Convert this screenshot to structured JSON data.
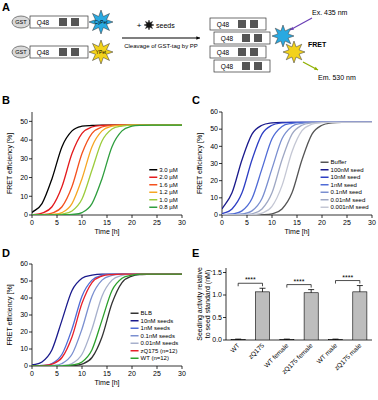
{
  "diagram": {
    "label": "A",
    "constructs": [
      {
        "tag": "GST",
        "polyq": "Q48",
        "fluorophore": "CyPet",
        "color": "#29a9e1"
      },
      {
        "tag": "GST",
        "polyq": "Q48",
        "fluorophore": "YPet",
        "color": "#f2d21b"
      }
    ],
    "plus": "+",
    "seeds": "seeds",
    "cleavage": "Cleavage of GST-tag by PP",
    "excitation": "Ex. 435 nm",
    "fret": "FRET",
    "emission": "Em. 530 nm"
  },
  "chart_data": [
    {
      "type": "line",
      "label": "B",
      "xlabel": "Time [h]",
      "ylabel": "FRET efficiency [%]",
      "x": [
        0,
        2,
        4,
        6,
        8,
        10,
        12,
        14,
        16,
        18,
        20,
        22,
        24,
        26,
        28,
        30
      ],
      "xlim": [
        0,
        30
      ],
      "xticks": [
        0,
        5,
        10,
        15,
        20,
        25,
        30
      ],
      "ylim": [
        0,
        55
      ],
      "yticks": [
        0,
        10,
        20,
        30,
        40,
        50
      ],
      "legend": "lower right",
      "series": [
        {
          "name": "3.0 µM",
          "color": "#000000",
          "values": [
            1.3,
            6.1,
            19.4,
            36.5,
            44.9,
            47.4,
            47.8,
            48,
            48,
            48,
            48,
            48,
            48,
            48,
            48,
            48
          ]
        },
        {
          "name": "2.0 µM",
          "color": "#e31a1c",
          "values": [
            0.2,
            1.0,
            4.4,
            15.2,
            32.8,
            43.6,
            47.0,
            47.8,
            48,
            48,
            48,
            48,
            48,
            48,
            48,
            48
          ]
        },
        {
          "name": "1.6 µM",
          "color": "#f4511e",
          "values": [
            0,
            0.2,
            1.0,
            4.4,
            15.2,
            32.8,
            43.6,
            47.0,
            47.8,
            48,
            48,
            48,
            48,
            48,
            48,
            48
          ]
        },
        {
          "name": "1.2 µM",
          "color": "#f5a623",
          "values": [
            0,
            0.1,
            0.3,
            1.3,
            6.1,
            19.4,
            36.5,
            44.9,
            47.4,
            47.9,
            48,
            48,
            48,
            48,
            48,
            48
          ]
        },
        {
          "name": "1.0 µM",
          "color": "#9ccc3c",
          "values": [
            0,
            0,
            0.1,
            0.5,
            2.1,
            8.5,
            24,
            39.5,
            45.9,
            47.5,
            48,
            48,
            48,
            48,
            48,
            48
          ]
        },
        {
          "name": "0.8 µM",
          "color": "#2e9e3e",
          "values": [
            0,
            0,
            0,
            0.1,
            0.3,
            1.3,
            6.1,
            19.4,
            36.5,
            44.9,
            47.4,
            47.9,
            48,
            48,
            48,
            48
          ]
        }
      ]
    },
    {
      "type": "line",
      "label": "C",
      "xlabel": "Time [h]",
      "ylabel": "FRET efficiency [%]",
      "x": [
        0,
        2,
        4,
        6,
        8,
        10,
        12,
        14,
        16,
        18,
        20,
        22,
        24,
        26,
        28,
        30
      ],
      "xlim": [
        0,
        30
      ],
      "xticks": [
        0,
        5,
        10,
        15,
        20,
        25,
        30
      ],
      "ylim": [
        0,
        60
      ],
      "yticks": [
        0,
        10,
        20,
        30,
        40,
        50,
        60
      ],
      "legend": "lower right",
      "series": [
        {
          "name": "Buffer",
          "color": "#555555",
          "values": [
            0,
            0,
            0,
            0,
            0.1,
            0.7,
            3.5,
            12.9,
            32.2,
            47.1,
            52.3,
            53.7,
            54,
            54,
            54,
            54
          ]
        },
        {
          "name": "100nM seed",
          "color": "#1a1a8c",
          "values": [
            3.5,
            12.9,
            32.2,
            47.1,
            52.3,
            53.7,
            54,
            54,
            54,
            54,
            54,
            54,
            54,
            54,
            54,
            54
          ]
        },
        {
          "name": "10nM seed",
          "color": "#2e3fc4",
          "values": [
            0.7,
            3.5,
            12.9,
            32.2,
            47.1,
            52.3,
            53.7,
            54,
            54,
            54,
            54,
            54,
            54,
            54,
            54,
            54
          ]
        },
        {
          "name": "1nM seed",
          "color": "#4f6bd6",
          "values": [
            0.1,
            0.6,
            2.4,
            9.6,
            27,
            44.4,
            51.6,
            53.4,
            54,
            54,
            54,
            54,
            54,
            54,
            54,
            54
          ]
        },
        {
          "name": "0.1nM seed",
          "color": "#7a8fd0",
          "values": [
            0,
            0.1,
            0.6,
            2.4,
            9.6,
            27,
            44.4,
            51.6,
            53.4,
            54,
            54,
            54,
            54,
            54,
            54,
            54
          ]
        },
        {
          "name": "0.01nM seed",
          "color": "#9fa8c4",
          "values": [
            0,
            0,
            0.1,
            0.7,
            3.5,
            12.9,
            32.2,
            47.1,
            52.3,
            53.7,
            54,
            54,
            54,
            54,
            54,
            54
          ]
        },
        {
          "name": "0.001nM seed",
          "color": "#c4c7d4",
          "values": [
            0,
            0,
            0,
            0.2,
            1.1,
            5.0,
            17.1,
            36.9,
            49.1,
            52.9,
            53.8,
            54,
            54,
            54,
            54,
            54
          ]
        }
      ]
    },
    {
      "type": "line",
      "label": "D",
      "xlabel": "Time [h]",
      "ylabel": "FRET efficiency [%]",
      "x": [
        0,
        2,
        4,
        6,
        8,
        10,
        12,
        14,
        16,
        18,
        20,
        22,
        24,
        26,
        28,
        30
      ],
      "xlim": [
        0,
        30
      ],
      "xticks": [
        0,
        5,
        10,
        15,
        20,
        25,
        30
      ],
      "ylim": [
        0,
        60
      ],
      "yticks": [
        0,
        10,
        20,
        30,
        40,
        50,
        60
      ],
      "legend": "lower right",
      "series": [
        {
          "name": "BLB",
          "color": "#333333",
          "values": [
            0,
            0,
            0,
            0,
            0.2,
            1.1,
            5.0,
            17.1,
            36.9,
            49.1,
            52.9,
            53.8,
            54,
            54,
            54,
            54
          ]
        },
        {
          "name": "10nM seeds",
          "color": "#1a1a8c",
          "values": [
            0.6,
            2.4,
            9.6,
            27,
            44.4,
            51.6,
            53.4,
            54,
            54,
            54,
            54,
            54,
            54,
            54,
            54,
            54
          ]
        },
        {
          "name": "1nM seeds",
          "color": "#4f6bd6",
          "values": [
            0.1,
            0.3,
            1.5,
            6.9,
            21.8,
            41.1,
            50.5,
            53.3,
            53.9,
            54,
            54,
            54,
            54,
            54,
            54,
            54
          ]
        },
        {
          "name": "0.1nM seeds",
          "color": "#7a8fd0",
          "values": [
            0,
            0.1,
            0.3,
            1.5,
            6.9,
            21.8,
            41.1,
            50.5,
            53.3,
            53.9,
            54,
            54,
            54,
            54,
            54,
            54
          ]
        },
        {
          "name": "0.01nM seeds",
          "color": "#a7b0cc",
          "values": [
            0,
            0,
            0.1,
            0.3,
            1.5,
            6.9,
            21.8,
            41.1,
            50.5,
            53.3,
            53.9,
            54,
            54,
            54,
            54,
            54
          ]
        },
        {
          "name": "zQ175 (n=12)",
          "color": "#e8202a",
          "values": [
            0,
            0.2,
            1.1,
            5.0,
            17.1,
            36.9,
            49.1,
            52.9,
            53.8,
            54,
            54,
            54,
            54,
            54,
            54,
            54
          ]
        },
        {
          "name": "WT (n=12)",
          "color": "#2ca02c",
          "values": [
            0,
            0,
            0,
            0.1,
            0.6,
            2.4,
            9.6,
            27,
            44.4,
            51.6,
            53.4,
            54,
            54,
            54,
            54,
            54
          ]
        }
      ]
    },
    {
      "type": "bar",
      "label": "E",
      "ylabel": "Seeding activity relative to seed standard (nM)",
      "categories": [
        "WT",
        "zQ175",
        "WT female",
        "zQ175 female",
        "WT male",
        "zQ175 male"
      ],
      "values": [
        0.01,
        1.07,
        0.01,
        1.05,
        0.01,
        1.07
      ],
      "errors": [
        0.01,
        0.08,
        0.01,
        0.07,
        0.01,
        0.14
      ],
      "color": "#bdbdbd",
      "ylim": [
        0,
        1.6
      ],
      "yticks": [
        {
          "value": 0,
          "label": "0.0"
        },
        {
          "value": 0.5,
          "label": "0.5"
        },
        {
          "value": 1,
          "label": "1.0"
        },
        {
          "value": 1.5,
          "label": "1.5"
        }
      ],
      "annotations": [
        "****",
        "****",
        "****"
      ]
    }
  ]
}
